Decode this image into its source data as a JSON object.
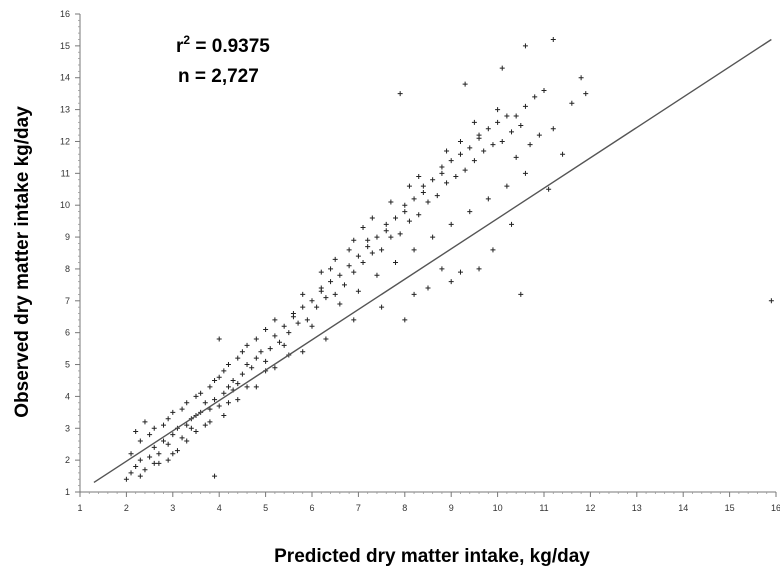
{
  "chart_data": {
    "type": "scatter",
    "title": "",
    "xlabel": "Predicted dry matter intake, kg/day",
    "ylabel": "Observed dry matter intake kg/day",
    "xlim": [
      1,
      16
    ],
    "ylim": [
      1,
      16
    ],
    "xticks": [
      "1",
      "2",
      "3",
      "4",
      "5",
      "6",
      "7",
      "8",
      "9",
      "10",
      "11",
      "12",
      "13",
      "14",
      "15",
      "16"
    ],
    "yticks": [
      "1",
      "2",
      "3",
      "4",
      "5",
      "6",
      "7",
      "8",
      "9",
      "10",
      "11",
      "12",
      "13",
      "14",
      "15",
      "16"
    ],
    "annotations": {
      "r2_prefix": "r",
      "r2_sup": "2",
      "r2_value": " = 0.9375",
      "n_text": "n = 2,727"
    },
    "r2": 0.9375,
    "n": 2727,
    "fit_line": {
      "x": [
        1.3,
        15.9
      ],
      "y": [
        1.3,
        15.2
      ]
    },
    "point_marker": "+",
    "point_color": "#222222",
    "series": [
      {
        "points": [
          [
            2.0,
            1.4
          ],
          [
            2.1,
            1.6
          ],
          [
            2.2,
            1.8
          ],
          [
            2.3,
            2.0
          ],
          [
            2.1,
            2.2
          ],
          [
            2.4,
            1.7
          ],
          [
            2.5,
            2.1
          ],
          [
            2.6,
            2.4
          ],
          [
            2.3,
            2.6
          ],
          [
            2.7,
            2.2
          ],
          [
            2.8,
            2.6
          ],
          [
            2.5,
            2.8
          ],
          [
            2.9,
            2.5
          ],
          [
            2.6,
            3.0
          ],
          [
            3.0,
            2.8
          ],
          [
            2.8,
            3.1
          ],
          [
            3.1,
            3.0
          ],
          [
            3.2,
            2.7
          ],
          [
            2.9,
            3.3
          ],
          [
            3.3,
            3.1
          ],
          [
            3.0,
            3.5
          ],
          [
            3.4,
            3.3
          ],
          [
            3.2,
            3.6
          ],
          [
            3.5,
            3.4
          ],
          [
            3.3,
            3.8
          ],
          [
            3.6,
            3.5
          ],
          [
            3.4,
            3.0
          ],
          [
            3.7,
            3.8
          ],
          [
            3.5,
            4.0
          ],
          [
            3.8,
            3.6
          ],
          [
            3.6,
            4.1
          ],
          [
            3.9,
            3.9
          ],
          [
            4.0,
            3.7
          ],
          [
            3.8,
            4.3
          ],
          [
            4.1,
            4.1
          ],
          [
            3.9,
            4.5
          ],
          [
            4.2,
            4.3
          ],
          [
            4.0,
            4.6
          ],
          [
            4.3,
            4.5
          ],
          [
            4.1,
            4.8
          ],
          [
            4.4,
            4.4
          ],
          [
            4.2,
            5.0
          ],
          [
            4.5,
            4.7
          ],
          [
            4.3,
            4.2
          ],
          [
            4.6,
            5.0
          ],
          [
            4.4,
            5.2
          ],
          [
            4.7,
            4.9
          ],
          [
            4.5,
            5.4
          ],
          [
            4.8,
            5.2
          ],
          [
            4.6,
            5.6
          ],
          [
            4.9,
            5.4
          ],
          [
            5.0,
            5.1
          ],
          [
            4.8,
            5.8
          ],
          [
            5.1,
            5.5
          ],
          [
            5.2,
            5.9
          ],
          [
            5.0,
            6.1
          ],
          [
            5.3,
            5.7
          ],
          [
            5.4,
            6.2
          ],
          [
            5.2,
            6.4
          ],
          [
            5.5,
            6.0
          ],
          [
            5.6,
            6.5
          ],
          [
            5.4,
            5.6
          ],
          [
            5.7,
            6.3
          ],
          [
            5.8,
            6.8
          ],
          [
            5.6,
            6.6
          ],
          [
            5.9,
            6.4
          ],
          [
            6.0,
            7.0
          ],
          [
            5.8,
            7.2
          ],
          [
            6.1,
            6.8
          ],
          [
            6.2,
            7.3
          ],
          [
            6.0,
            6.2
          ],
          [
            6.3,
            7.1
          ],
          [
            6.4,
            7.6
          ],
          [
            6.2,
            7.4
          ],
          [
            6.5,
            7.2
          ],
          [
            6.6,
            7.8
          ],
          [
            6.4,
            8.0
          ],
          [
            6.7,
            7.5
          ],
          [
            6.8,
            8.1
          ],
          [
            6.6,
            6.9
          ],
          [
            6.9,
            7.9
          ],
          [
            7.0,
            8.4
          ],
          [
            6.8,
            8.6
          ],
          [
            7.1,
            8.2
          ],
          [
            7.2,
            8.7
          ],
          [
            7.0,
            7.3
          ],
          [
            7.3,
            8.5
          ],
          [
            7.4,
            9.0
          ],
          [
            7.2,
            8.9
          ],
          [
            7.5,
            8.6
          ],
          [
            7.6,
            9.2
          ],
          [
            7.4,
            7.8
          ],
          [
            7.7,
            9.0
          ],
          [
            7.8,
            9.6
          ],
          [
            7.6,
            9.4
          ],
          [
            7.9,
            9.1
          ],
          [
            8.0,
            9.8
          ],
          [
            7.8,
            8.2
          ],
          [
            8.1,
            9.5
          ],
          [
            8.2,
            10.2
          ],
          [
            8.0,
            10.0
          ],
          [
            8.3,
            9.7
          ],
          [
            8.4,
            10.4
          ],
          [
            8.2,
            8.6
          ],
          [
            8.5,
            10.1
          ],
          [
            8.6,
            10.8
          ],
          [
            8.4,
            10.6
          ],
          [
            8.7,
            10.3
          ],
          [
            8.8,
            11.0
          ],
          [
            8.6,
            9.0
          ],
          [
            8.9,
            10.7
          ],
          [
            9.0,
            11.4
          ],
          [
            8.8,
            11.2
          ],
          [
            9.1,
            10.9
          ],
          [
            9.2,
            11.6
          ],
          [
            9.0,
            9.4
          ],
          [
            9.3,
            11.1
          ],
          [
            9.4,
            11.8
          ],
          [
            9.2,
            12.0
          ],
          [
            9.5,
            11.4
          ],
          [
            9.6,
            12.1
          ],
          [
            9.4,
            9.8
          ],
          [
            9.7,
            11.7
          ],
          [
            9.8,
            12.4
          ],
          [
            9.6,
            12.2
          ],
          [
            9.9,
            11.9
          ],
          [
            10.0,
            12.6
          ],
          [
            9.8,
            10.2
          ],
          [
            10.1,
            12.0
          ],
          [
            10.2,
            12.8
          ],
          [
            10.0,
            13.0
          ],
          [
            10.3,
            12.3
          ],
          [
            10.4,
            11.5
          ],
          [
            10.2,
            10.6
          ],
          [
            10.5,
            12.5
          ],
          [
            10.6,
            13.1
          ],
          [
            10.4,
            12.8
          ],
          [
            10.7,
            11.9
          ],
          [
            10.8,
            13.4
          ],
          [
            10.6,
            11.0
          ],
          [
            10.9,
            12.2
          ],
          [
            11.0,
            13.6
          ],
          [
            11.2,
            12.4
          ],
          [
            11.4,
            11.6
          ],
          [
            11.6,
            13.2
          ],
          [
            11.8,
            14.0
          ],
          [
            11.9,
            13.5
          ],
          [
            10.6,
            15.0
          ],
          [
            11.2,
            15.2
          ],
          [
            7.9,
            13.5
          ],
          [
            8.0,
            6.4
          ],
          [
            7.5,
            6.8
          ],
          [
            8.2,
            7.2
          ],
          [
            9.0,
            7.6
          ],
          [
            9.6,
            8.0
          ],
          [
            10.5,
            7.2
          ],
          [
            3.9,
            1.5
          ],
          [
            4.0,
            5.8
          ],
          [
            15.9,
            7.0
          ],
          [
            8.5,
            7.4
          ],
          [
            9.2,
            7.9
          ],
          [
            9.9,
            8.6
          ],
          [
            10.3,
            9.4
          ],
          [
            11.1,
            10.5
          ],
          [
            8.8,
            8.0
          ],
          [
            9.3,
            13.8
          ],
          [
            10.1,
            14.3
          ],
          [
            6.3,
            5.8
          ],
          [
            5.8,
            5.4
          ],
          [
            6.9,
            6.4
          ],
          [
            2.2,
            2.9
          ],
          [
            2.4,
            3.2
          ],
          [
            2.7,
            1.9
          ],
          [
            3.1,
            2.3
          ],
          [
            3.5,
            2.9
          ],
          [
            2.9,
            2.0
          ],
          [
            3.8,
            3.2
          ],
          [
            4.2,
            3.8
          ],
          [
            4.6,
            4.3
          ],
          [
            5.0,
            4.8
          ],
          [
            2.3,
            1.5
          ],
          [
            2.6,
            1.9
          ],
          [
            3.0,
            2.2
          ],
          [
            3.3,
            2.6
          ],
          [
            3.7,
            3.1
          ],
          [
            4.1,
            3.4
          ],
          [
            4.4,
            3.9
          ],
          [
            4.8,
            4.3
          ],
          [
            5.2,
            4.9
          ],
          [
            5.5,
            5.3
          ],
          [
            6.5,
            8.3
          ],
          [
            7.1,
            9.3
          ],
          [
            7.7,
            10.1
          ],
          [
            8.3,
            10.9
          ],
          [
            8.9,
            11.7
          ],
          [
            9.5,
            12.6
          ],
          [
            6.2,
            7.9
          ],
          [
            6.9,
            8.9
          ],
          [
            7.3,
            9.6
          ],
          [
            8.1,
            10.6
          ]
        ]
      }
    ]
  }
}
